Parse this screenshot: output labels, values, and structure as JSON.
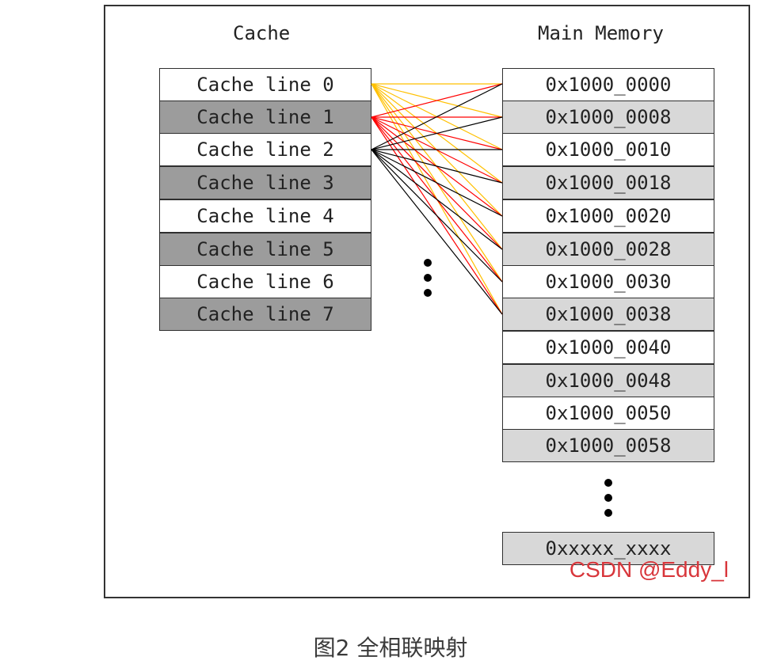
{
  "diagram": {
    "cache_heading": "Cache",
    "memory_heading": "Main Memory",
    "cache_lines": [
      "Cache line 0",
      "Cache line 1",
      "Cache line 2",
      "Cache line 3",
      "Cache line 4",
      "Cache line 5",
      "Cache line 6",
      "Cache line 7"
    ],
    "memory_blocks": [
      "0x1000_0000",
      "0x1000_0008",
      "0x1000_0010",
      "0x1000_0018",
      "0x1000_0020",
      "0x1000_0028",
      "0x1000_0030",
      "0x1000_0038",
      "0x1000_0040",
      "0x1000_0048",
      "0x1000_0050",
      "0x1000_0058"
    ],
    "memory_last_block": "0xxxxx_xxxx",
    "connection_colors": {
      "cache_line_0": "#ffc000",
      "cache_line_1": "#ff0000",
      "cache_line_2": "#000000"
    },
    "cache_alt_fill": "#9c9c9c",
    "memory_alt_fill": "#d8d8d8"
  },
  "watermark": "CSDN @Eddy_l",
  "caption": "图2 全相联映射"
}
